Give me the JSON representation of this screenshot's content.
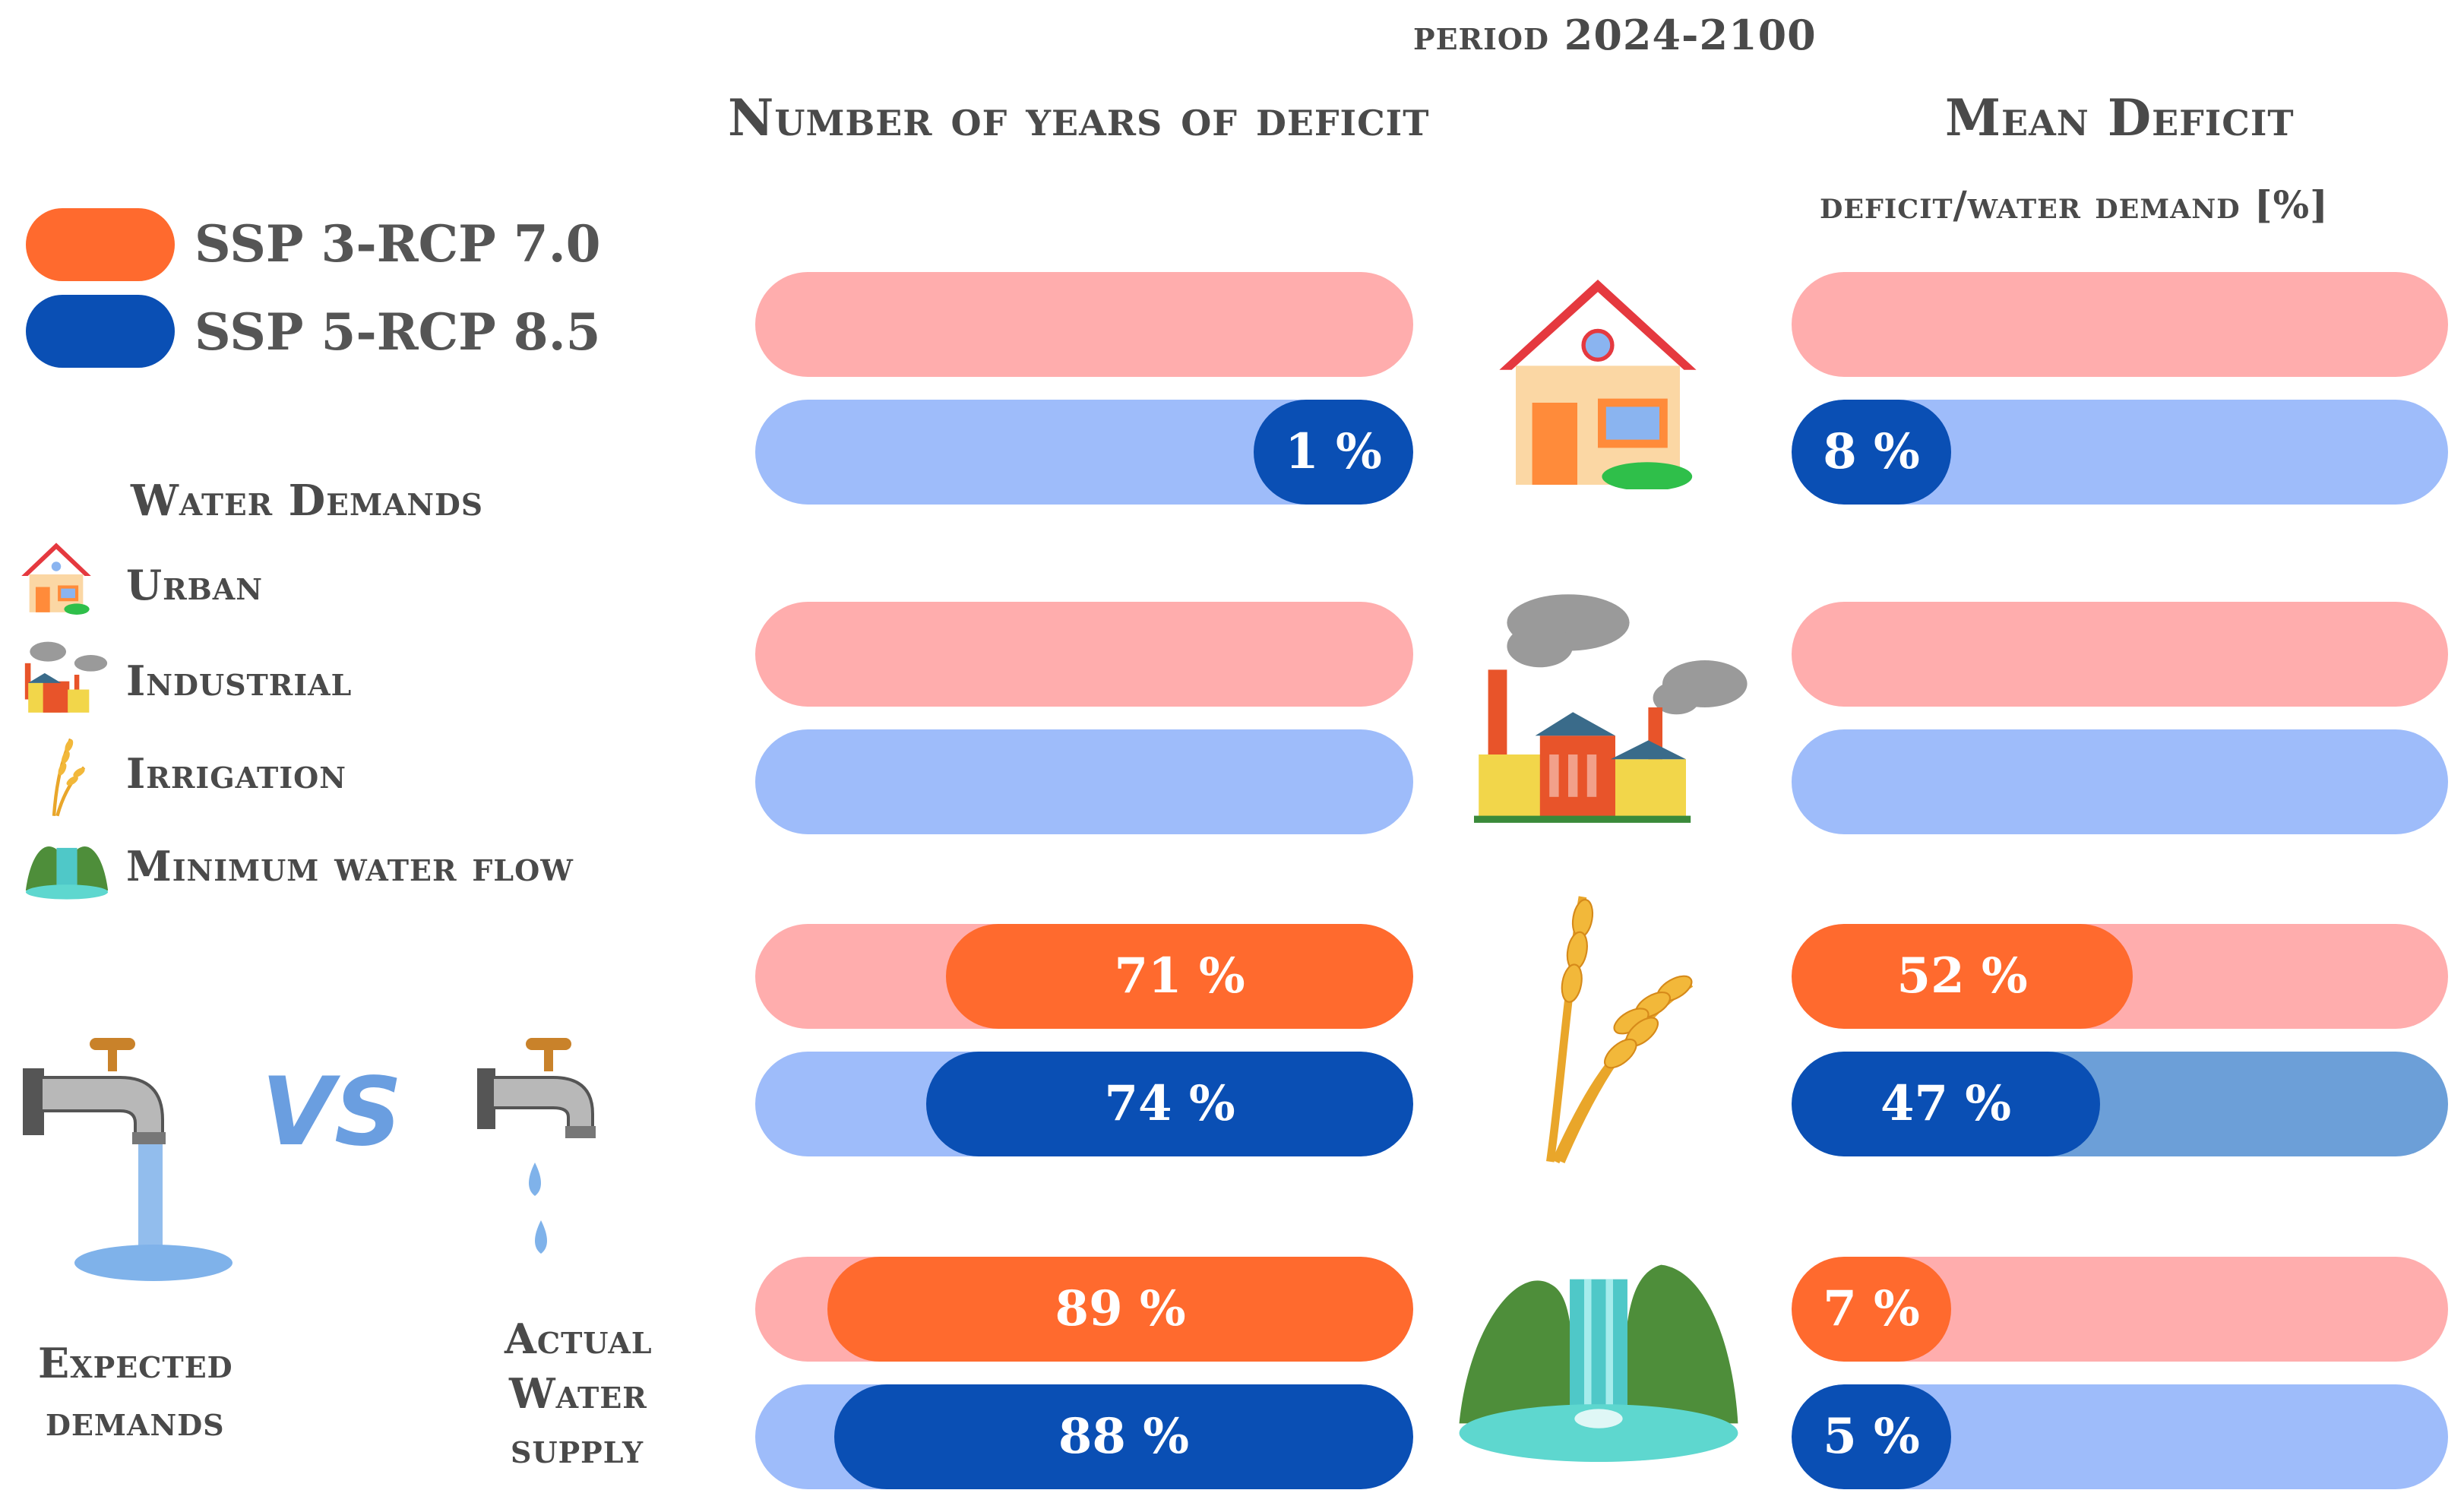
{
  "title": "period 2024-2100",
  "left_header": "Number of years of deficit",
  "right_header": "Mean Deficit",
  "right_subheader": "deficit/water demand [%]",
  "legend": [
    {
      "label": "SSP 3-RCP 7.0",
      "color": "#ff6a2e"
    },
    {
      "label": "SSP 5-RCP 8.5",
      "color": "#0a4fb4"
    }
  ],
  "demands_title": "Water Demands",
  "demands": [
    {
      "label": "Urban",
      "icon": "house-icon"
    },
    {
      "label": "Industrial",
      "icon": "factory-icon"
    },
    {
      "label": "Irrigation",
      "icon": "wheat-icon"
    },
    {
      "label": "Minimum water flow",
      "icon": "waterfall-icon"
    }
  ],
  "vs_text": "VS",
  "expected_label_1": "Expected",
  "expected_label_2": "demands",
  "actual_label_1": "Actual",
  "actual_label_2": "Water",
  "actual_label_3": "supply",
  "colors": {
    "ssp3_track": "#ffadad",
    "ssp3_fill": "#ff6a2e",
    "ssp5_track": "#9ebcfa",
    "ssp5_fill": "#0a4fb4",
    "ssp5_track_dark": "#6c9fd8"
  },
  "chart_data": [
    {
      "type": "bar",
      "orientation": "horizontal",
      "title": "Number of years of deficit",
      "categories": [
        "Urban",
        "Industrial",
        "Irrigation",
        "Minimum water flow"
      ],
      "series": [
        {
          "name": "SSP 3-RCP 7.0",
          "values": [
            null,
            null,
            71,
            89
          ],
          "labels": [
            "",
            "",
            "71 %",
            "89 %"
          ]
        },
        {
          "name": "SSP 5-RCP 8.5",
          "values": [
            1,
            null,
            74,
            88
          ],
          "labels": [
            "1 %",
            "",
            "74 %",
            "88 %"
          ]
        }
      ],
      "unit": "%",
      "xlim": [
        0,
        100
      ],
      "fill_direction": "right-to-left"
    },
    {
      "type": "bar",
      "orientation": "horizontal",
      "title": "Mean Deficit",
      "subtitle": "deficit/water demand [%]",
      "categories": [
        "Urban",
        "Industrial",
        "Irrigation",
        "Minimum water flow"
      ],
      "series": [
        {
          "name": "SSP 3-RCP 7.0",
          "values": [
            null,
            null,
            52,
            7
          ],
          "labels": [
            "",
            "",
            "52 %",
            "7 %"
          ]
        },
        {
          "name": "SSP 5-RCP 8.5",
          "values": [
            8,
            null,
            47,
            5
          ],
          "labels": [
            "8 %",
            "",
            "47 %",
            "5 %"
          ]
        }
      ],
      "unit": "%",
      "xlim": [
        0,
        100
      ],
      "fill_direction": "left-to-right"
    }
  ]
}
